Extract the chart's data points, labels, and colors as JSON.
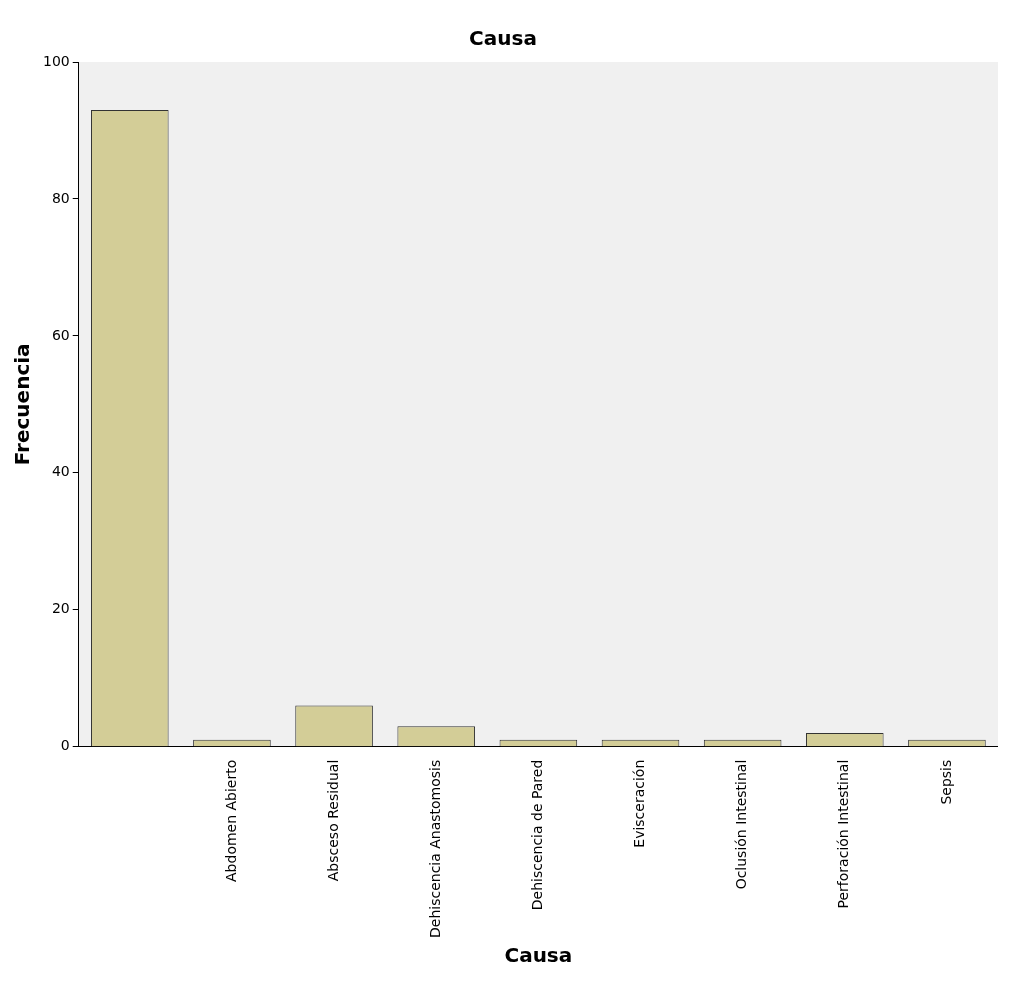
{
  "chart_data": {
    "type": "bar",
    "title": "Causa",
    "xlabel": "Causa",
    "ylabel": "Frecuencia",
    "categories": [
      null,
      "Abdomen Abierto",
      "Absceso Residual",
      "Dehiscencia Anastomosis",
      "Dehiscencia de Pared",
      "Evisceración",
      "Oclusión Intestinal",
      "Perforación Intestinal",
      "Sepsis"
    ],
    "values": [
      93,
      1,
      6,
      3,
      1,
      1,
      1,
      2,
      1
    ],
    "color": "#d3cd97",
    "ylim": [
      0,
      100
    ],
    "yticks": [
      0,
      20,
      40,
      60,
      80,
      100
    ],
    "grid": false,
    "legend": false
  }
}
